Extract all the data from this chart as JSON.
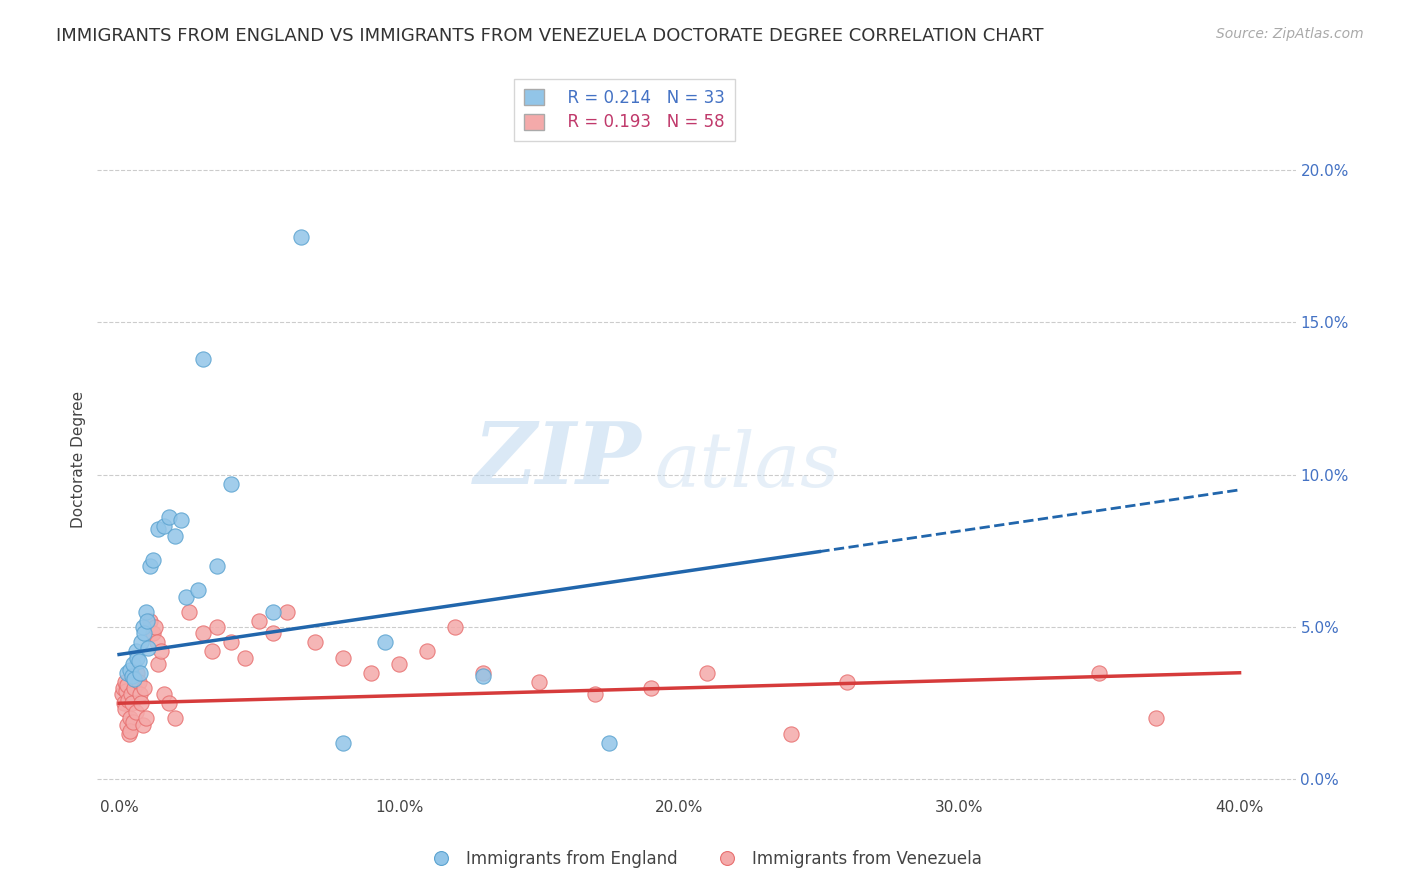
{
  "title": "IMMIGRANTS FROM ENGLAND VS IMMIGRANTS FROM VENEZUELA DOCTORATE DEGREE CORRELATION CHART",
  "source": "Source: ZipAtlas.com",
  "xlabel_vals": [
    0.0,
    10.0,
    20.0,
    30.0,
    40.0
  ],
  "ylabel_vals": [
    0.0,
    5.0,
    10.0,
    15.0,
    20.0
  ],
  "xlim": [
    -0.8,
    42.0
  ],
  "ylim": [
    -0.5,
    21.5
  ],
  "england_label": "Immigrants from England",
  "venezuela_label": "Immigrants from Venezuela",
  "england_R": "R = 0.214",
  "england_N": "N = 33",
  "venezuela_R": "R = 0.193",
  "venezuela_N": "N = 58",
  "england_color": "#92c5e8",
  "venezuela_color": "#f4aaaa",
  "england_edge_color": "#5ba3d0",
  "venezuela_edge_color": "#e87070",
  "england_line_color": "#2166ac",
  "venezuela_line_color": "#d63b3b",
  "england_scatter": [
    [
      0.3,
      3.5
    ],
    [
      0.4,
      3.6
    ],
    [
      0.45,
      3.4
    ],
    [
      0.5,
      3.8
    ],
    [
      0.55,
      3.3
    ],
    [
      0.6,
      4.2
    ],
    [
      0.65,
      4.0
    ],
    [
      0.7,
      3.9
    ],
    [
      0.75,
      3.5
    ],
    [
      0.8,
      4.5
    ],
    [
      0.85,
      5.0
    ],
    [
      0.9,
      4.8
    ],
    [
      0.95,
      5.5
    ],
    [
      1.0,
      5.2
    ],
    [
      1.05,
      4.3
    ],
    [
      1.1,
      7.0
    ],
    [
      1.2,
      7.2
    ],
    [
      1.4,
      8.2
    ],
    [
      1.6,
      8.3
    ],
    [
      1.8,
      8.6
    ],
    [
      2.0,
      8.0
    ],
    [
      2.2,
      8.5
    ],
    [
      2.4,
      6.0
    ],
    [
      2.8,
      6.2
    ],
    [
      3.0,
      13.8
    ],
    [
      3.5,
      7.0
    ],
    [
      4.0,
      9.7
    ],
    [
      5.5,
      5.5
    ],
    [
      6.5,
      17.8
    ],
    [
      8.0,
      1.2
    ],
    [
      9.5,
      4.5
    ],
    [
      13.0,
      3.4
    ],
    [
      17.5,
      1.2
    ]
  ],
  "venezuela_scatter": [
    [
      0.1,
      2.8
    ],
    [
      0.15,
      3.0
    ],
    [
      0.18,
      2.5
    ],
    [
      0.2,
      3.2
    ],
    [
      0.22,
      2.3
    ],
    [
      0.25,
      2.9
    ],
    [
      0.28,
      3.1
    ],
    [
      0.3,
      1.8
    ],
    [
      0.32,
      2.6
    ],
    [
      0.35,
      1.5
    ],
    [
      0.38,
      2.0
    ],
    [
      0.4,
      1.6
    ],
    [
      0.42,
      2.8
    ],
    [
      0.45,
      2.5
    ],
    [
      0.48,
      1.9
    ],
    [
      0.5,
      3.4
    ],
    [
      0.55,
      3.0
    ],
    [
      0.6,
      2.2
    ],
    [
      0.65,
      3.5
    ],
    [
      0.7,
      3.2
    ],
    [
      0.75,
      2.8
    ],
    [
      0.8,
      2.5
    ],
    [
      0.85,
      1.8
    ],
    [
      0.9,
      3.0
    ],
    [
      0.95,
      2.0
    ],
    [
      1.1,
      5.2
    ],
    [
      1.2,
      4.8
    ],
    [
      1.3,
      5.0
    ],
    [
      1.35,
      4.5
    ],
    [
      1.4,
      3.8
    ],
    [
      1.5,
      4.2
    ],
    [
      1.6,
      2.8
    ],
    [
      1.8,
      2.5
    ],
    [
      2.0,
      2.0
    ],
    [
      2.5,
      5.5
    ],
    [
      3.0,
      4.8
    ],
    [
      3.3,
      4.2
    ],
    [
      3.5,
      5.0
    ],
    [
      4.0,
      4.5
    ],
    [
      4.5,
      4.0
    ],
    [
      5.0,
      5.2
    ],
    [
      5.5,
      4.8
    ],
    [
      6.0,
      5.5
    ],
    [
      7.0,
      4.5
    ],
    [
      8.0,
      4.0
    ],
    [
      9.0,
      3.5
    ],
    [
      10.0,
      3.8
    ],
    [
      11.0,
      4.2
    ],
    [
      12.0,
      5.0
    ],
    [
      13.0,
      3.5
    ],
    [
      15.0,
      3.2
    ],
    [
      17.0,
      2.8
    ],
    [
      19.0,
      3.0
    ],
    [
      21.0,
      3.5
    ],
    [
      24.0,
      1.5
    ],
    [
      26.0,
      3.2
    ],
    [
      35.0,
      3.5
    ],
    [
      37.0,
      2.0
    ]
  ],
  "eng_trend_x0": 0.0,
  "eng_trend_y0": 4.1,
  "eng_trend_x1": 40.0,
  "eng_trend_y1": 9.5,
  "eng_solid_end_x": 25.0,
  "ven_trend_x0": 0.0,
  "ven_trend_y0": 2.5,
  "ven_trend_x1": 40.0,
  "ven_trend_y1": 3.5,
  "watermark_zip": "ZIP",
  "watermark_atlas": "atlas",
  "background_color": "#ffffff",
  "grid_color": "#cccccc",
  "title_fontsize": 13,
  "axis_label_fontsize": 11,
  "tick_fontsize": 11,
  "legend_fontsize": 12,
  "source_fontsize": 10
}
